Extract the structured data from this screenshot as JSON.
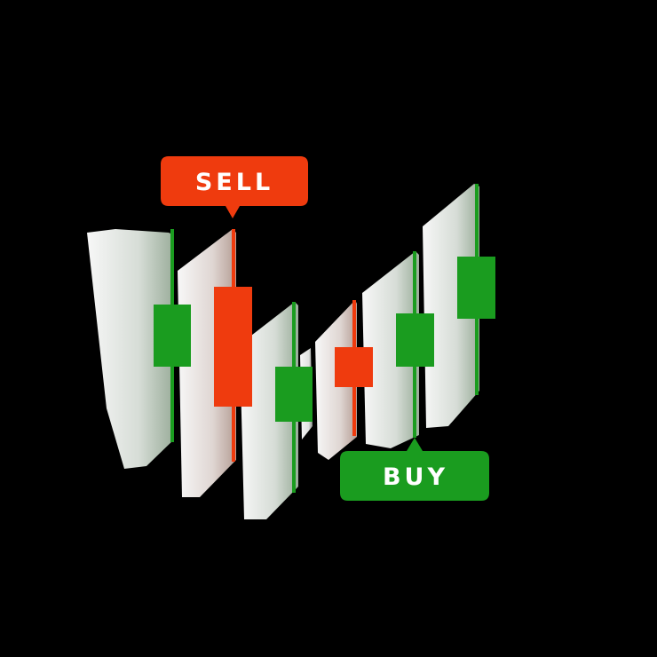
{
  "colors": {
    "background": "#000000",
    "bullish": "#1a9c1f",
    "bearish": "#ef3b0e",
    "shadow": "#ffffff"
  },
  "labels": {
    "sell": "SELL",
    "buy": "BUY"
  },
  "candles": [
    {
      "direction": "up",
      "color_key": "bullish"
    },
    {
      "direction": "down",
      "color_key": "bearish"
    },
    {
      "direction": "up",
      "color_key": "bullish"
    },
    {
      "direction": "down",
      "color_key": "bearish"
    },
    {
      "direction": "up",
      "color_key": "bullish"
    },
    {
      "direction": "up",
      "color_key": "bullish"
    }
  ]
}
